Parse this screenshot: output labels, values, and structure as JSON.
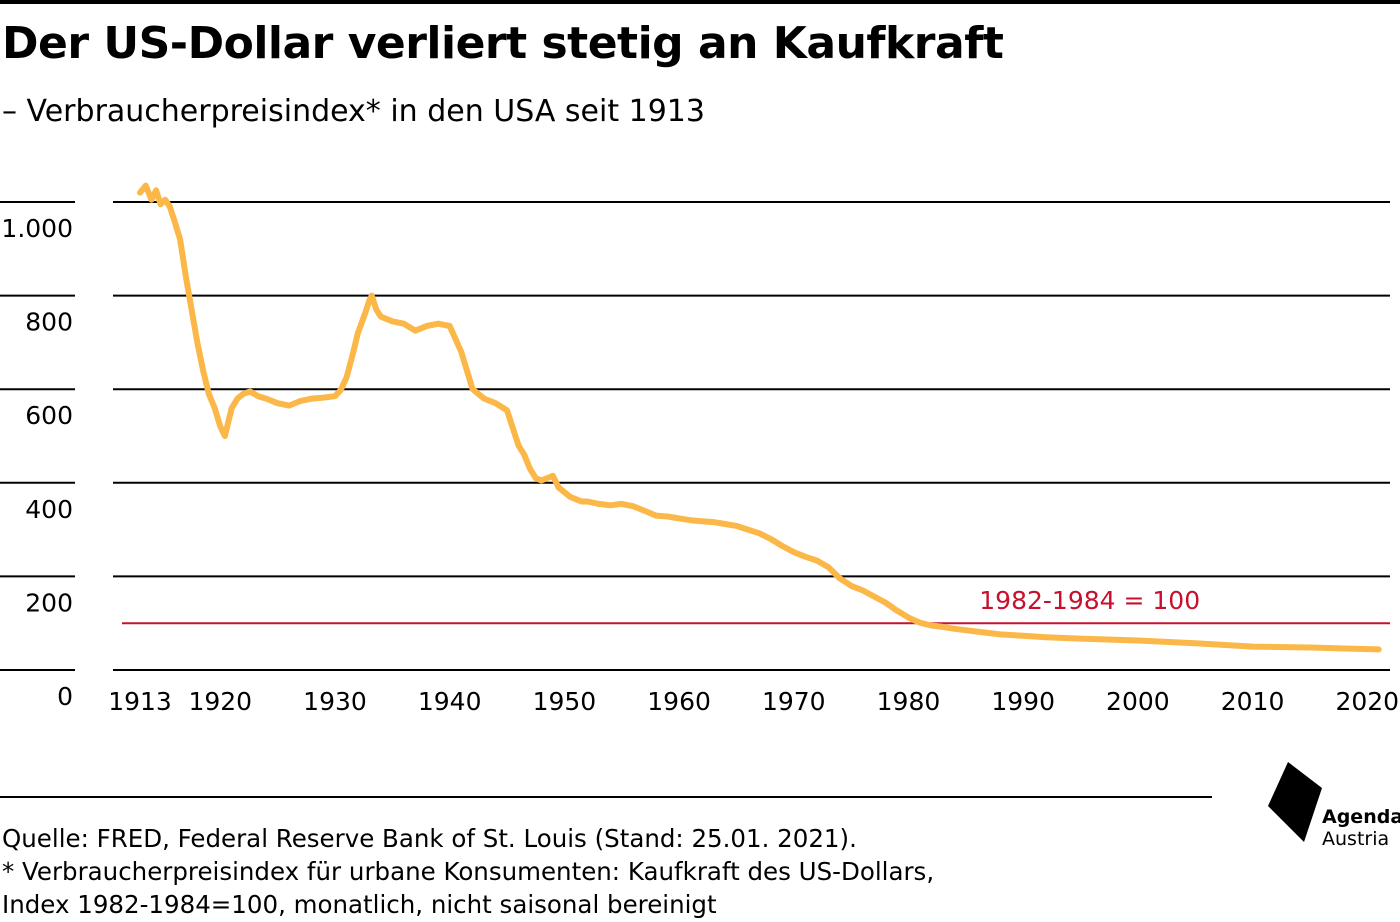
{
  "header": {
    "title": "Der US-Dollar verliert stetig an Kaufkraft",
    "subtitle": "– Verbraucherpreisindex* in den USA seit 1913"
  },
  "footer": {
    "source_line1": "Quelle: FRED, Federal Reserve Bank of St. Louis (Stand: 25.01. 2021).",
    "source_line2": "* Verbraucherpreisindex für urbane Konsumenten: Kaufkraft des US-Dollars,",
    "source_line3": "Index 1982-1984=100, monatlich, nicht saisonal bereinigt"
  },
  "logo": {
    "line1": "Agenda",
    "line2": "Austria",
    "icon": "agenda-austria-logo-icon"
  },
  "colors": {
    "line": "#fbb848",
    "reference": "#c8102e",
    "grid": "#000000"
  },
  "chart_data": {
    "type": "line",
    "title": "Der US-Dollar verliert stetig an Kaufkraft",
    "subtitle": "– Verbraucherpreisindex* in den USA seit 1913",
    "xlabel": "",
    "ylabel": "",
    "xlim": [
      1913,
      2021
    ],
    "ylim": [
      0,
      1000
    ],
    "x_ticks": [
      1913,
      1920,
      1930,
      1940,
      1950,
      1960,
      1970,
      1980,
      1990,
      2000,
      2010,
      2020
    ],
    "x_tick_labels": [
      "1913",
      "1920",
      "1930",
      "1940",
      "1950",
      "1960",
      "1970",
      "1980",
      "1990",
      "2000",
      "2010",
      "2020"
    ],
    "y_ticks": [
      0,
      200,
      400,
      600,
      800,
      1000
    ],
    "y_tick_labels": [
      "0",
      "200",
      "400",
      "600",
      "800",
      "1.000"
    ],
    "grid": "horizontal",
    "reference_line": {
      "y": 100,
      "label": "1982-1984 = 100"
    },
    "series": [
      {
        "name": "",
        "x": [
          1913.0,
          1913.5,
          1914.0,
          1914.4,
          1914.8,
          1915.2,
          1915.6,
          1916.0,
          1916.5,
          1917.0,
          1917.5,
          1918.0,
          1918.5,
          1919.0,
          1919.5,
          1920.0,
          1920.4,
          1920.7,
          1921.0,
          1921.5,
          1922.0,
          1922.6,
          1923.3,
          1924.0,
          1925.0,
          1926.0,
          1927.0,
          1928.0,
          1929.0,
          1930.0,
          1930.5,
          1931.0,
          1931.5,
          1932.0,
          1932.6,
          1933.0,
          1933.2,
          1933.6,
          1934.0,
          1935.0,
          1936.0,
          1937.0,
          1938.0,
          1939.0,
          1940.0,
          1941.0,
          1941.5,
          1942.0,
          1942.5,
          1943.0,
          1944.0,
          1945.0,
          1946.0,
          1946.5,
          1947.0,
          1947.5,
          1948.0,
          1948.5,
          1949.0,
          1949.5,
          1950.0,
          1950.5,
          1951.0,
          1951.5,
          1952.0,
          1953.0,
          1954.0,
          1955.0,
          1956.0,
          1957.0,
          1958.0,
          1959.0,
          1960.0,
          1961.0,
          1962.0,
          1963.0,
          1964.0,
          1965.0,
          1966.0,
          1967.0,
          1968.0,
          1969.0,
          1970.0,
          1971.0,
          1972.0,
          1973.0,
          1974.0,
          1975.0,
          1976.0,
          1977.0,
          1978.0,
          1979.0,
          1980.0,
          1981.0,
          1982.0,
          1983.0,
          1984.0,
          1985.0,
          1986.0,
          1987.0,
          1988.0,
          1990.0,
          1992.0,
          1995.0,
          2000.0,
          2005.0,
          2008.0,
          2010.0,
          2015.0,
          2018.0,
          2021.0
        ],
        "values": [
          1020,
          1035,
          1005,
          1025,
          995,
          1005,
          990,
          960,
          920,
          840,
          770,
          700,
          640,
          590,
          560,
          520,
          500,
          530,
          560,
          580,
          590,
          595,
          585,
          580,
          570,
          565,
          575,
          580,
          582,
          585,
          598,
          625,
          670,
          720,
          760,
          790,
          800,
          770,
          755,
          745,
          740,
          725,
          735,
          740,
          735,
          680,
          640,
          600,
          590,
          580,
          570,
          555,
          480,
          460,
          430,
          410,
          405,
          410,
          415,
          390,
          380,
          370,
          365,
          360,
          360,
          355,
          352,
          355,
          350,
          340,
          330,
          328,
          324,
          320,
          318,
          316,
          312,
          308,
          300,
          292,
          280,
          265,
          252,
          242,
          234,
          220,
          196,
          180,
          170,
          157,
          144,
          127,
          112,
          101,
          95,
          92,
          88,
          85,
          82,
          79,
          76,
          73,
          70,
          67,
          63,
          57,
          53,
          50,
          48,
          46,
          44
        ]
      }
    ]
  }
}
